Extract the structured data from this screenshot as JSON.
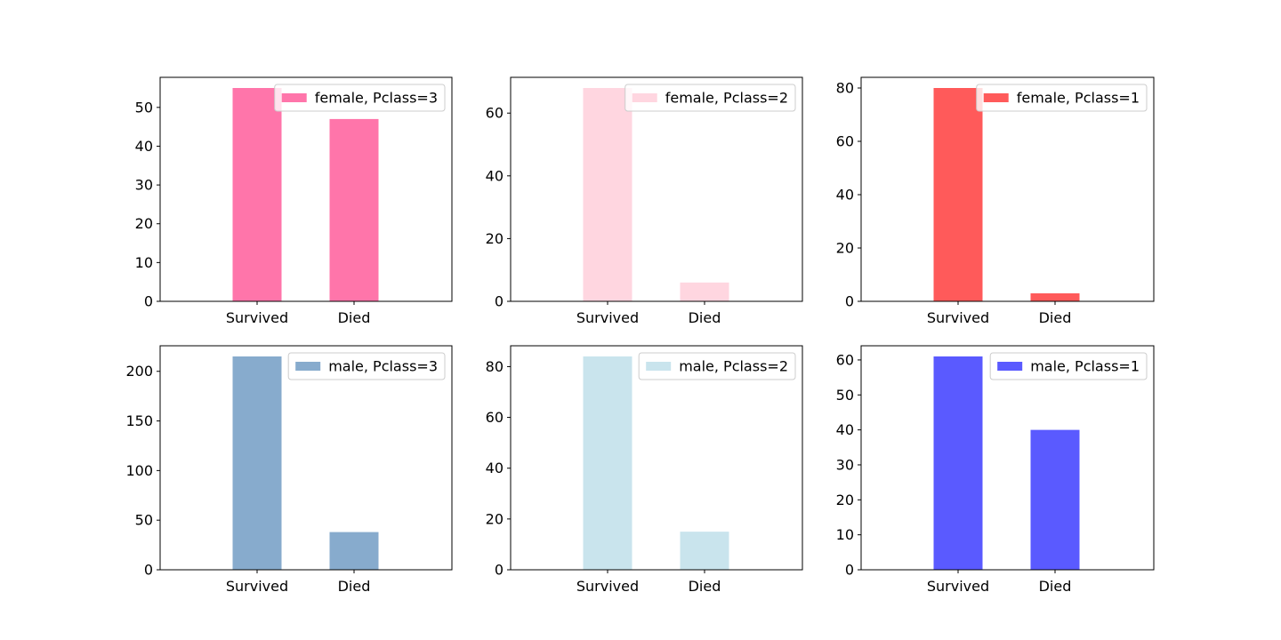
{
  "chart_data": [
    {
      "type": "bar",
      "categories": [
        "Survived",
        "Died"
      ],
      "series": [
        {
          "name": "female, Pclass=3",
          "values": [
            55,
            47
          ]
        }
      ],
      "color": "#ff75aa",
      "yticks": [
        0,
        10,
        20,
        30,
        40,
        50
      ],
      "ylim": [
        0,
        57.75
      ],
      "legend": "upper right",
      "grid": false
    },
    {
      "type": "bar",
      "categories": [
        "Survived",
        "Died"
      ],
      "series": [
        {
          "name": "female, Pclass=2",
          "values": [
            68,
            6
          ]
        }
      ],
      "color": "#ffd6e0",
      "yticks": [
        0,
        20,
        40,
        60
      ],
      "ylim": [
        0,
        71.4
      ],
      "legend": "upper right",
      "grid": false
    },
    {
      "type": "bar",
      "categories": [
        "Survived",
        "Died"
      ],
      "series": [
        {
          "name": "female, Pclass=1",
          "values": [
            80,
            3
          ]
        }
      ],
      "color": "#ff5a5a",
      "yticks": [
        0,
        20,
        40,
        60,
        80
      ],
      "ylim": [
        0,
        84
      ],
      "legend": "upper right",
      "grid": false
    },
    {
      "type": "bar",
      "categories": [
        "Survived",
        "Died"
      ],
      "series": [
        {
          "name": "male, Pclass=3",
          "values": [
            215,
            38
          ]
        }
      ],
      "color": "#87abcd",
      "yticks": [
        0,
        50,
        100,
        150,
        200
      ],
      "ylim": [
        0,
        225.75
      ],
      "legend": "upper right",
      "grid": false
    },
    {
      "type": "bar",
      "categories": [
        "Survived",
        "Died"
      ],
      "series": [
        {
          "name": "male, Pclass=2",
          "values": [
            84,
            15
          ]
        }
      ],
      "color": "#c9e4ed",
      "yticks": [
        0,
        20,
        40,
        60,
        80
      ],
      "ylim": [
        0,
        88.2
      ],
      "legend": "upper right",
      "grid": false
    },
    {
      "type": "bar",
      "categories": [
        "Survived",
        "Died"
      ],
      "series": [
        {
          "name": "male, Pclass=1",
          "values": [
            61,
            40
          ]
        }
      ],
      "color": "#5a5aff",
      "yticks": [
        0,
        10,
        20,
        30,
        40,
        50,
        60
      ],
      "ylim": [
        0,
        64.05
      ],
      "legend": "upper right",
      "grid": false
    }
  ]
}
